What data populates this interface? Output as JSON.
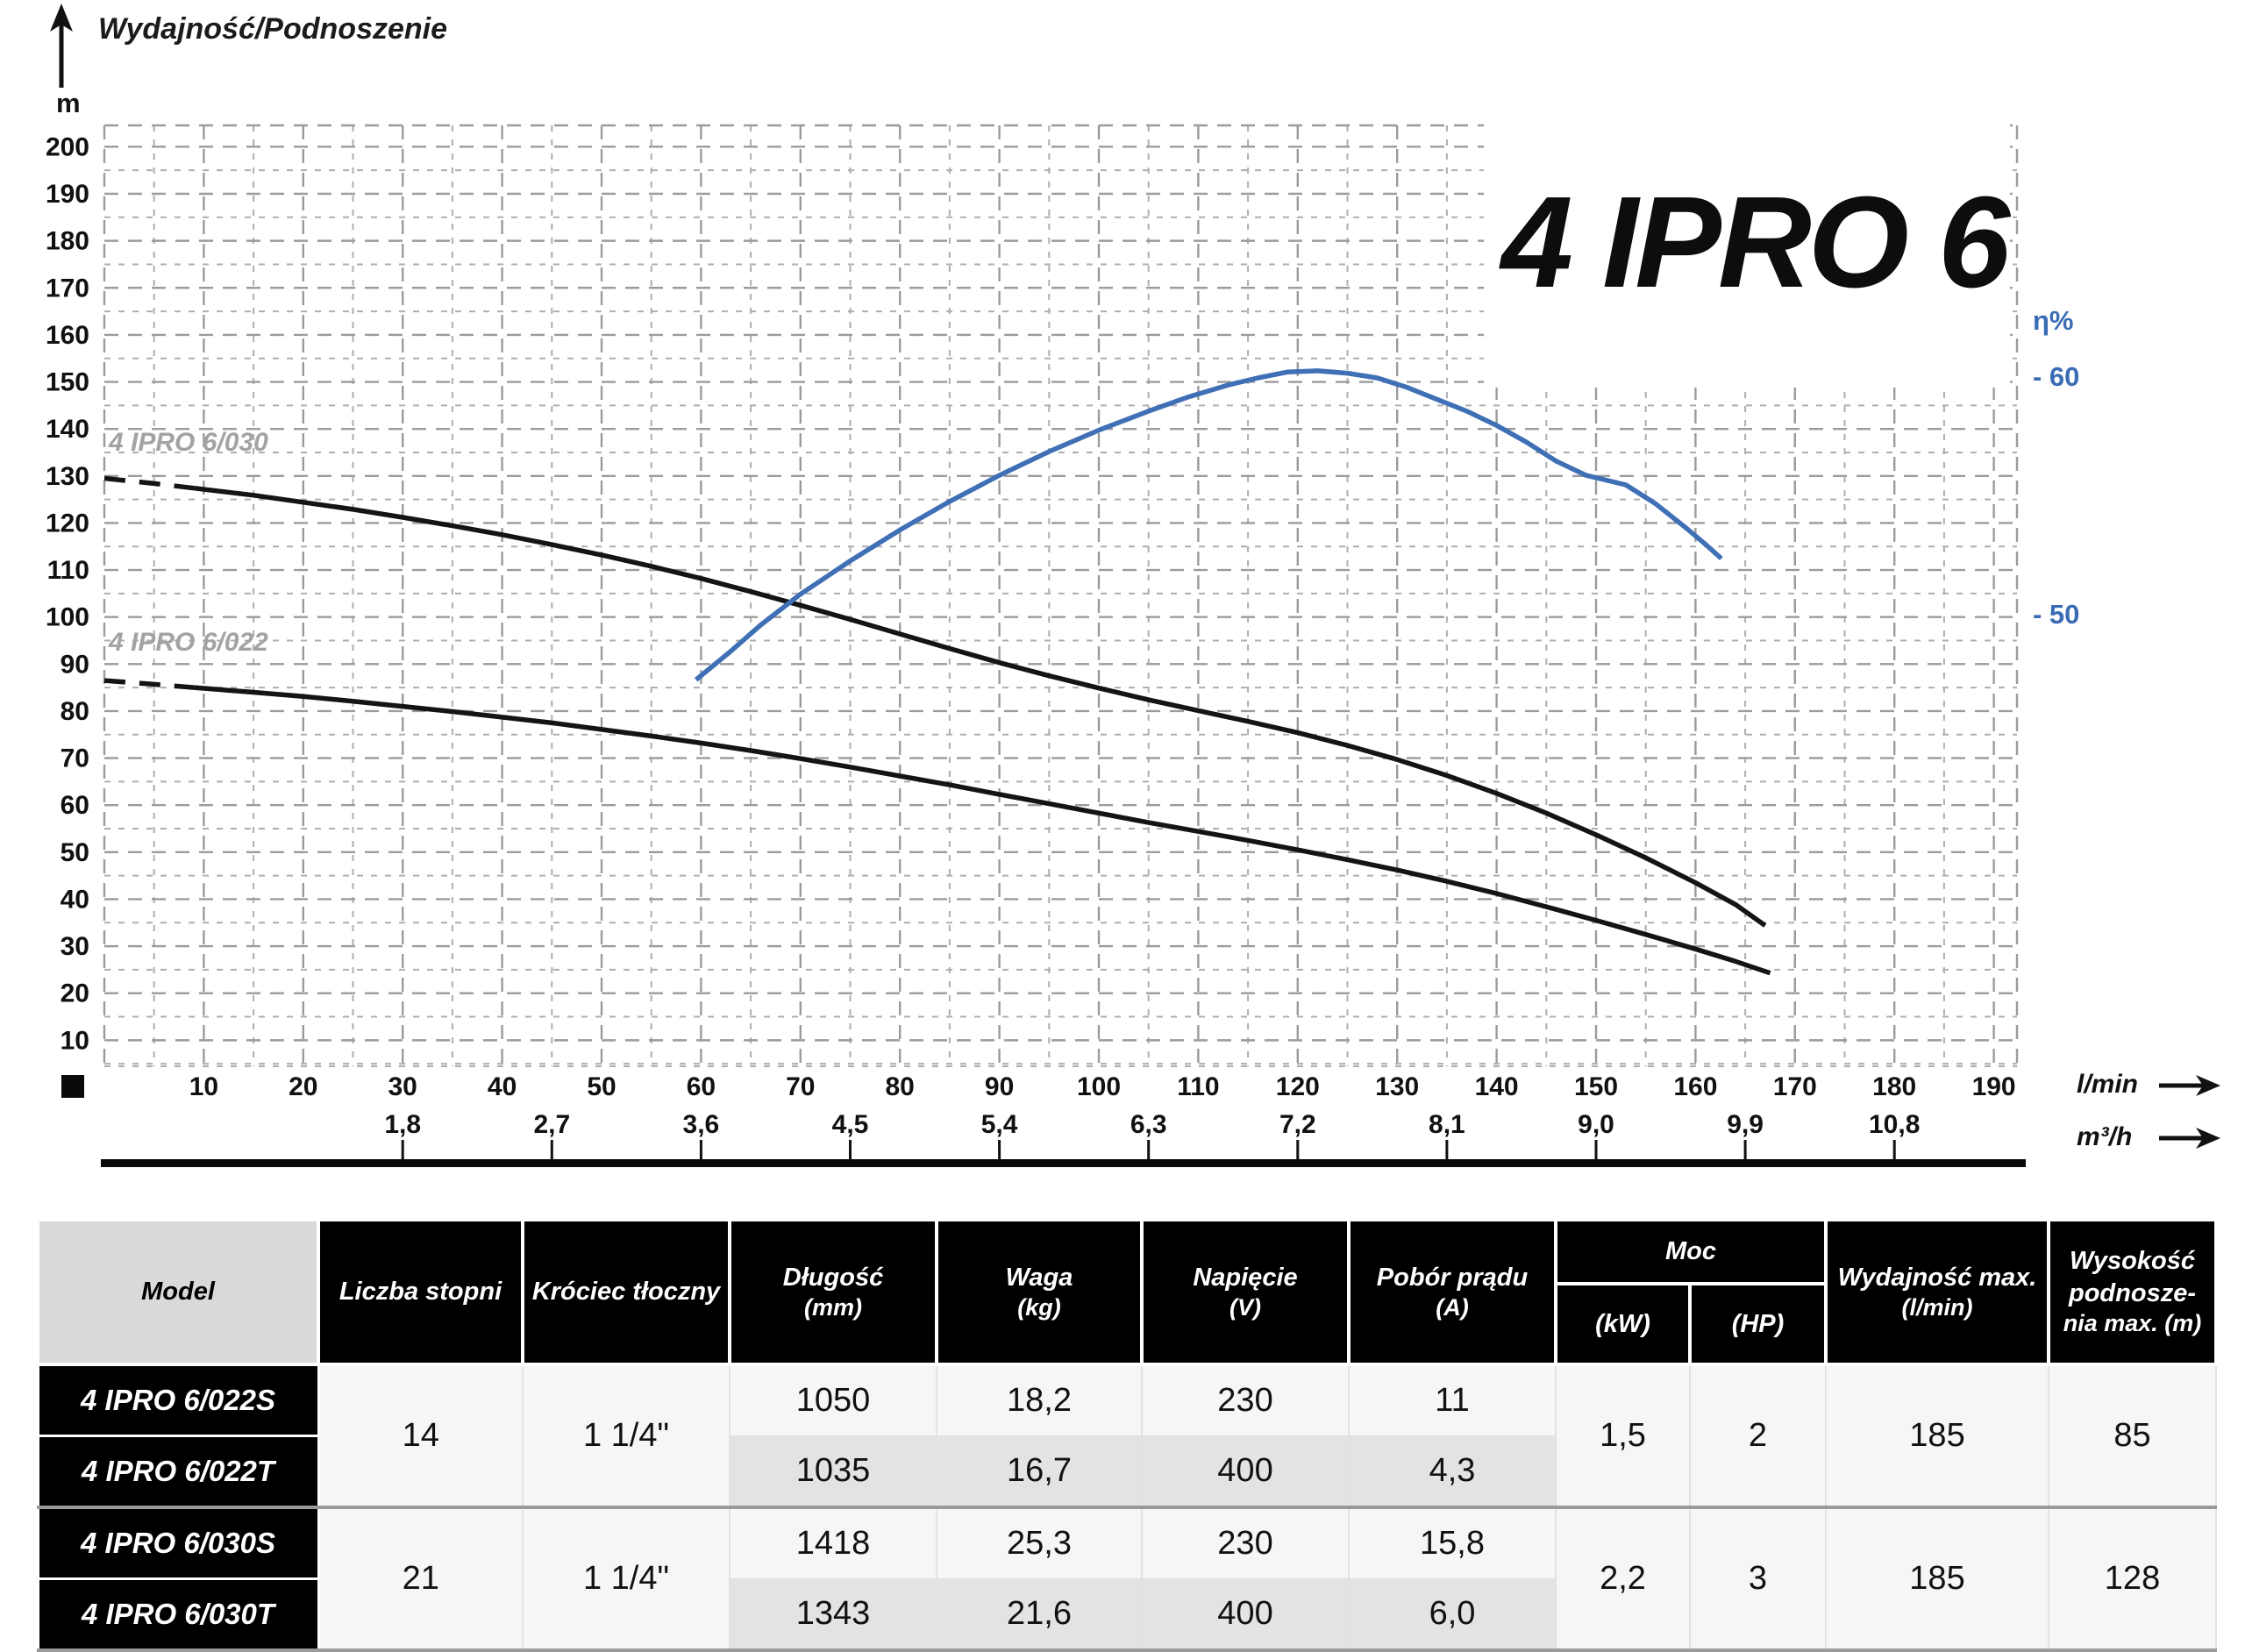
{
  "chart": {
    "axis_title": "Wydajność/Podnoszenie",
    "y_unit": "m",
    "title": "4 IPRO 6",
    "eta_label": "η%",
    "eta_tick_labels": [
      "- 60",
      "- 50"
    ],
    "x_unit_lmin": "l/min",
    "x_unit_m3h": "m³/h",
    "curve_labels": {
      "c030": "4 IPRO 6/030",
      "c022": "4 IPRO 6/022"
    },
    "y_ticks_m": [
      200,
      190,
      180,
      170,
      160,
      150,
      140,
      130,
      120,
      110,
      100,
      90,
      80,
      70,
      60,
      50,
      40,
      30,
      20,
      10
    ],
    "x_ticks_lmin": [
      10,
      20,
      30,
      40,
      50,
      60,
      70,
      80,
      90,
      100,
      110,
      120,
      130,
      140,
      150,
      160,
      170,
      180,
      190
    ],
    "x_ticks_m3h": [
      {
        "label": "1,8",
        "lmin": 30
      },
      {
        "label": "2,7",
        "lmin": 45
      },
      {
        "label": "3,6",
        "lmin": 60
      },
      {
        "label": "4,5",
        "lmin": 75
      },
      {
        "label": "5,4",
        "lmin": 90
      },
      {
        "label": "6,3",
        "lmin": 105
      },
      {
        "label": "7,2",
        "lmin": 120
      },
      {
        "label": "8,1",
        "lmin": 135
      },
      {
        "label": "9,0",
        "lmin": 150
      },
      {
        "label": "9,9",
        "lmin": 165
      },
      {
        "label": "10,8",
        "lmin": 180
      }
    ],
    "colors": {
      "head_curve": "#141414",
      "eta_curve": "#3f6fb5",
      "eta_text": "#3a6cb5",
      "grid_major": "#9b9b9b",
      "grid_minor": "#aeaeae",
      "curve_label": "#a3a3a3"
    }
  },
  "chart_data": {
    "type": "line",
    "title": "4 IPRO 6 pump performance curves",
    "xlabel": "Wydajność (l/min, m³/h)",
    "ylabel": "Podnoszenie (m)",
    "x_range_lmin": [
      0,
      192
    ],
    "y_range_m": [
      0,
      205
    ],
    "secondary_y_axis": {
      "label": "η%",
      "ticks": [
        60,
        50
      ]
    },
    "grid": true,
    "series": [
      {
        "name": "4 IPRO 6/030",
        "axis": "m",
        "color": "#141414",
        "dashed_until": 9,
        "points": [
          [
            0,
            129.5
          ],
          [
            5,
            128.4
          ],
          [
            9,
            127.4
          ],
          [
            15,
            125.9
          ],
          [
            20,
            124.4
          ],
          [
            25,
            122.9
          ],
          [
            30,
            121.2
          ],
          [
            35,
            119.4
          ],
          [
            40,
            117.5
          ],
          [
            45,
            115.4
          ],
          [
            50,
            113.2
          ],
          [
            55,
            110.8
          ],
          [
            60,
            108.2
          ],
          [
            65,
            105.4
          ],
          [
            70,
            102.5
          ],
          [
            75,
            99.5
          ],
          [
            80,
            96.4
          ],
          [
            85,
            93.3
          ],
          [
            90,
            90.3
          ],
          [
            95,
            87.5
          ],
          [
            100,
            84.9
          ],
          [
            105,
            82.4
          ],
          [
            110,
            80.1
          ],
          [
            115,
            77.8
          ],
          [
            120,
            75.4
          ],
          [
            125,
            72.7
          ],
          [
            130,
            69.7
          ],
          [
            135,
            66.3
          ],
          [
            140,
            62.5
          ],
          [
            145,
            58.3
          ],
          [
            150,
            53.7
          ],
          [
            155,
            48.8
          ],
          [
            160,
            43.5
          ],
          [
            164,
            38.9
          ],
          [
            167,
            34.4
          ]
        ]
      },
      {
        "name": "4 IPRO 6/022",
        "axis": "m",
        "color": "#141414",
        "dashed_until": 9,
        "points": [
          [
            0,
            86.5
          ],
          [
            5,
            85.7
          ],
          [
            9,
            85.0
          ],
          [
            15,
            84.0
          ],
          [
            20,
            83.1
          ],
          [
            25,
            82.1
          ],
          [
            30,
            81.0
          ],
          [
            35,
            79.9
          ],
          [
            40,
            78.7
          ],
          [
            45,
            77.5
          ],
          [
            50,
            76.1
          ],
          [
            55,
            74.7
          ],
          [
            60,
            73.2
          ],
          [
            65,
            71.6
          ],
          [
            70,
            69.9
          ],
          [
            75,
            68.1
          ],
          [
            80,
            66.2
          ],
          [
            85,
            64.3
          ],
          [
            90,
            62.3
          ],
          [
            95,
            60.3
          ],
          [
            100,
            58.3
          ],
          [
            105,
            56.3
          ],
          [
            110,
            54.4
          ],
          [
            115,
            52.5
          ],
          [
            120,
            50.5
          ],
          [
            125,
            48.4
          ],
          [
            130,
            46.2
          ],
          [
            135,
            43.8
          ],
          [
            140,
            41.2
          ],
          [
            145,
            38.4
          ],
          [
            150,
            35.5
          ],
          [
            155,
            32.5
          ],
          [
            160,
            29.4
          ],
          [
            164,
            26.8
          ],
          [
            167.5,
            24.3
          ]
        ]
      },
      {
        "name": "η%",
        "axis": "eta",
        "color": "#3f6fb5",
        "points": [
          [
            59.5,
            47.3
          ],
          [
            63,
            48.5
          ],
          [
            66,
            49.6
          ],
          [
            70,
            50.9
          ],
          [
            75,
            52.3
          ],
          [
            80,
            53.6
          ],
          [
            85,
            54.8
          ],
          [
            90,
            55.9
          ],
          [
            95,
            56.9
          ],
          [
            100,
            57.8
          ],
          [
            105,
            58.6
          ],
          [
            109,
            59.2
          ],
          [
            113,
            59.7
          ],
          [
            116,
            60.0
          ],
          [
            119,
            60.25
          ],
          [
            122,
            60.3
          ],
          [
            125,
            60.2
          ],
          [
            128,
            60.0
          ],
          [
            131,
            59.6
          ],
          [
            134,
            59.1
          ],
          [
            137,
            58.6
          ],
          [
            140,
            58.0
          ],
          [
            143,
            57.3
          ],
          [
            146,
            56.5
          ],
          [
            149,
            55.9
          ],
          [
            153,
            55.5
          ],
          [
            156,
            54.7
          ],
          [
            159,
            53.7
          ],
          [
            161,
            53.0
          ],
          [
            162.6,
            52.4
          ]
        ]
      }
    ]
  },
  "table": {
    "headers": {
      "model": "Model",
      "stopnie": "Liczba stopni",
      "krociec": "Króciec tłoczny",
      "dlugosc": {
        "label": "Długość",
        "sub": "(mm)"
      },
      "waga": {
        "label": "Waga",
        "sub": "(kg)"
      },
      "napiecie": {
        "label": "Napięcie",
        "sub": "(V)"
      },
      "pobor": {
        "label": "Pobór prądu",
        "sub": "(A)"
      },
      "moc": "Moc",
      "kw": "(kW)",
      "hp": "(HP)",
      "wydajnosc": {
        "label": "Wydajność max.",
        "sub": "(l/min)"
      },
      "wysokosc": {
        "label": "Wysokość podnosze-",
        "sub": "nia max. (m)"
      }
    },
    "pairs": [
      {
        "stopnie": "14",
        "krociec": "1 1/4\"",
        "kw": "1,5",
        "hp": "2",
        "wyd": "185",
        "wys": "85",
        "rows": [
          {
            "model": "4 IPRO 6/022S",
            "dlugosc": "1050",
            "waga": "18,2",
            "napiecie": "230",
            "pobor": "11"
          },
          {
            "model": "4 IPRO 6/022T",
            "dlugosc": "1035",
            "waga": "16,7",
            "napiecie": "400",
            "pobor": "4,3"
          }
        ]
      },
      {
        "stopnie": "21",
        "krociec": "1 1/4\"",
        "kw": "2,2",
        "hp": "3",
        "wyd": "185",
        "wys": "128",
        "rows": [
          {
            "model": "4 IPRO 6/030S",
            "dlugosc": "1418",
            "waga": "25,3",
            "napiecie": "230",
            "pobor": "15,8"
          },
          {
            "model": "4 IPRO 6/030T",
            "dlugosc": "1343",
            "waga": "21,6",
            "napiecie": "400",
            "pobor": "6,0"
          }
        ]
      }
    ]
  }
}
